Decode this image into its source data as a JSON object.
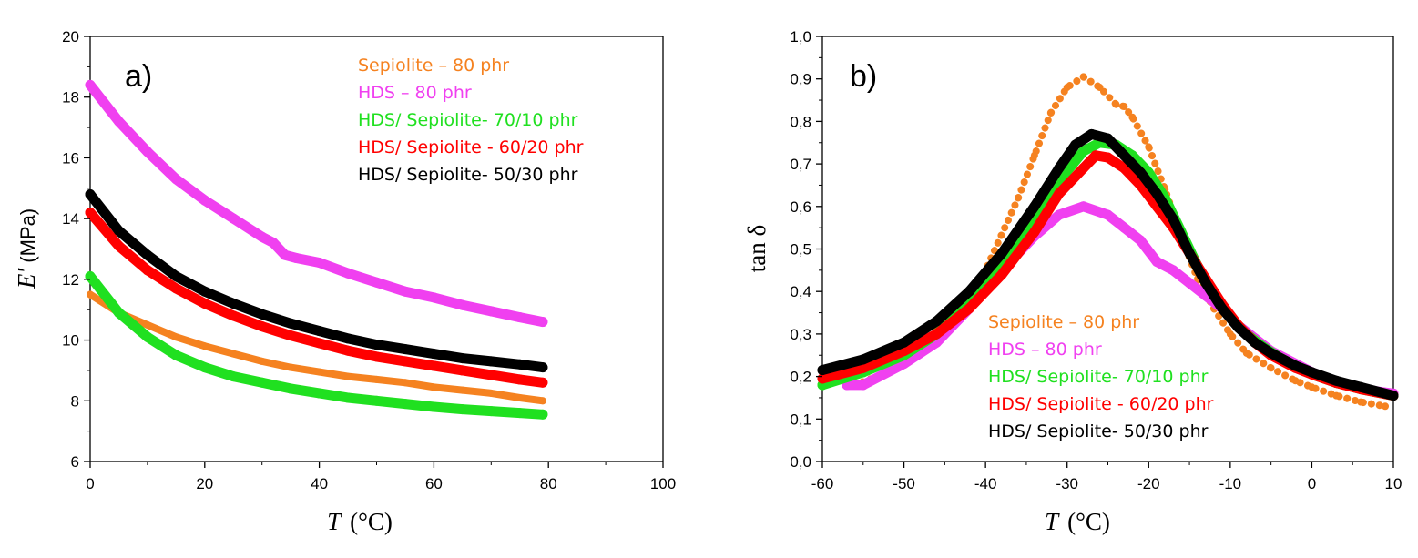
{
  "chart_data": [
    {
      "type": "scatter",
      "panel_label": "a)",
      "xlabel_italic": "T",
      "xlabel_unit": "(°C)",
      "ylabel_italic": "E′",
      "ylabel_unit": "(MPa)",
      "xlim": [
        0,
        100
      ],
      "ylim": [
        6,
        20
      ],
      "xticks": [
        0,
        20,
        40,
        60,
        80,
        100
      ],
      "xtick_labels": [
        "0",
        "20",
        "40",
        "60",
        "80",
        "100"
      ],
      "yticks": [
        6,
        8,
        10,
        12,
        14,
        16,
        18,
        20
      ],
      "ytick_labels": [
        "6",
        "8",
        "10",
        "12",
        "14",
        "16",
        "18",
        "20"
      ],
      "grid": false,
      "legend_position": "top-right",
      "series": [
        {
          "name": "Sepiolite – 80 phr",
          "color": "#F58220",
          "x": [
            0,
            5,
            10,
            15,
            20,
            25,
            30,
            35,
            40,
            45,
            50,
            55,
            60,
            65,
            70,
            75,
            79
          ],
          "y": [
            11.5,
            10.9,
            10.5,
            10.1,
            9.8,
            9.55,
            9.3,
            9.1,
            8.95,
            8.8,
            8.7,
            8.6,
            8.45,
            8.35,
            8.25,
            8.1,
            8.0
          ]
        },
        {
          "name": "HDS – 80 phr",
          "color": "#F040F0",
          "x": [
            0,
            5,
            10,
            15,
            20,
            25,
            30,
            32,
            34,
            36,
            40,
            45,
            50,
            55,
            60,
            65,
            70,
            75,
            79
          ],
          "y": [
            18.4,
            17.2,
            16.2,
            15.3,
            14.6,
            14.0,
            13.4,
            13.2,
            12.8,
            12.7,
            12.55,
            12.2,
            11.9,
            11.6,
            11.4,
            11.15,
            10.95,
            10.75,
            10.6
          ]
        },
        {
          "name": "HDS/ Sepiolite- 70/10 phr",
          "color": "#20E020",
          "x": [
            0,
            5,
            10,
            15,
            20,
            25,
            30,
            35,
            40,
            45,
            50,
            55,
            60,
            65,
            70,
            75,
            79
          ],
          "y": [
            12.1,
            10.9,
            10.1,
            9.5,
            9.1,
            8.8,
            8.6,
            8.4,
            8.25,
            8.1,
            8.0,
            7.9,
            7.8,
            7.72,
            7.66,
            7.6,
            7.55
          ]
        },
        {
          "name": "HDS/ Sepiolite - 60/20 phr",
          "color": "#FF0000",
          "x": [
            0,
            5,
            10,
            15,
            20,
            25,
            30,
            35,
            40,
            45,
            50,
            55,
            60,
            65,
            70,
            75,
            79
          ],
          "y": [
            14.2,
            13.1,
            12.3,
            11.7,
            11.2,
            10.8,
            10.45,
            10.15,
            9.9,
            9.65,
            9.45,
            9.3,
            9.15,
            9.0,
            8.85,
            8.7,
            8.6
          ]
        },
        {
          "name": "HDS/ Sepiolite- 50/30 phr",
          "color": "#000000",
          "x": [
            0,
            5,
            10,
            15,
            20,
            25,
            30,
            35,
            40,
            45,
            50,
            55,
            60,
            65,
            70,
            75,
            79
          ],
          "y": [
            14.8,
            13.6,
            12.8,
            12.1,
            11.6,
            11.2,
            10.85,
            10.55,
            10.3,
            10.05,
            9.85,
            9.7,
            9.55,
            9.4,
            9.3,
            9.2,
            9.1
          ]
        }
      ]
    },
    {
      "type": "scatter",
      "panel_label": "b)",
      "xlabel_italic": "T",
      "xlabel_unit": "(°C)",
      "ylabel": "tan δ",
      "xlim": [
        -60,
        10
      ],
      "ylim": [
        0,
        1
      ],
      "xticks": [
        -60,
        -50,
        -40,
        -30,
        -20,
        -10,
        0,
        10
      ],
      "xtick_labels": [
        "-60",
        "-50",
        "-40",
        "-30",
        "-20",
        "-10",
        "0",
        "10"
      ],
      "yticks": [
        0,
        0.1,
        0.2,
        0.3,
        0.4,
        0.5,
        0.6,
        0.7,
        0.8,
        0.9,
        1.0
      ],
      "ytick_labels": [
        "0,0",
        "0,1",
        "0,2",
        "0,3",
        "0,4",
        "0,5",
        "0,6",
        "0,7",
        "0,8",
        "0,9",
        "1,0"
      ],
      "grid": false,
      "legend_position": "bottom-center",
      "series": [
        {
          "name": "Sepiolite – 80 phr",
          "color": "#F58220",
          "x": [
            -56,
            -52,
            -48,
            -44,
            -40,
            -36,
            -34,
            -32,
            -30,
            -28,
            -26,
            -24,
            -23,
            -22,
            -20,
            -18,
            -16,
            -14,
            -12,
            -10,
            -8,
            -5,
            -2,
            0,
            3,
            6,
            9
          ],
          "y": [
            0.18,
            0.21,
            0.27,
            0.35,
            0.45,
            0.62,
            0.72,
            0.82,
            0.88,
            0.905,
            0.88,
            0.84,
            0.835,
            0.81,
            0.74,
            0.64,
            0.53,
            0.43,
            0.36,
            0.3,
            0.255,
            0.22,
            0.19,
            0.175,
            0.155,
            0.14,
            0.13
          ]
        },
        {
          "name": "HDS – 80 phr",
          "color": "#F040F0",
          "x": [
            -57,
            -55,
            -50,
            -46,
            -42,
            -38,
            -34,
            -31,
            -28,
            -25,
            -23,
            -21,
            -19,
            -17,
            -15,
            -13,
            -11,
            -9,
            -7,
            -5,
            -3,
            0,
            4,
            8,
            10
          ],
          "y": [
            0.18,
            0.18,
            0.23,
            0.28,
            0.36,
            0.45,
            0.53,
            0.58,
            0.6,
            0.58,
            0.55,
            0.52,
            0.47,
            0.45,
            0.42,
            0.39,
            0.36,
            0.32,
            0.29,
            0.26,
            0.24,
            0.21,
            0.18,
            0.165,
            0.16
          ]
        },
        {
          "name": "HDS/ Sepiolite- 70/10 phr",
          "color": "#20E020",
          "x": [
            -60,
            -55,
            -50,
            -46,
            -42,
            -38,
            -34,
            -31,
            -28,
            -26,
            -24,
            -22,
            -20,
            -18,
            -16,
            -14,
            -12,
            -10,
            -8,
            -6,
            -4,
            -2,
            0,
            3,
            6,
            10
          ],
          "y": [
            0.18,
            0.21,
            0.25,
            0.3,
            0.37,
            0.46,
            0.57,
            0.66,
            0.73,
            0.75,
            0.745,
            0.72,
            0.68,
            0.62,
            0.54,
            0.46,
            0.39,
            0.34,
            0.3,
            0.27,
            0.245,
            0.225,
            0.205,
            0.185,
            0.17,
            0.155
          ]
        },
        {
          "name": "HDS/ Sepiolite - 60/20 phr",
          "color": "#FF0000",
          "x": [
            -60,
            -55,
            -50,
            -46,
            -42,
            -38,
            -34,
            -31,
            -28,
            -26.5,
            -25,
            -23,
            -21,
            -19,
            -17,
            -15,
            -13,
            -11,
            -9,
            -7,
            -5,
            -2,
            0,
            3,
            6,
            10
          ],
          "y": [
            0.195,
            0.22,
            0.26,
            0.3,
            0.36,
            0.44,
            0.54,
            0.63,
            0.69,
            0.72,
            0.715,
            0.69,
            0.65,
            0.6,
            0.55,
            0.49,
            0.43,
            0.37,
            0.32,
            0.28,
            0.25,
            0.22,
            0.205,
            0.185,
            0.17,
            0.155
          ]
        },
        {
          "name": "HDS/ Sepiolite- 50/30 phr",
          "color": "#000000",
          "x": [
            -60,
            -55,
            -50,
            -46,
            -42,
            -38,
            -34,
            -31,
            -29,
            -27,
            -25,
            -23,
            -21,
            -19,
            -17,
            -15,
            -13,
            -11,
            -9,
            -7,
            -5,
            -2,
            0,
            3,
            6,
            10
          ],
          "y": [
            0.215,
            0.24,
            0.28,
            0.33,
            0.4,
            0.49,
            0.6,
            0.69,
            0.745,
            0.77,
            0.76,
            0.72,
            0.68,
            0.63,
            0.57,
            0.49,
            0.42,
            0.36,
            0.315,
            0.28,
            0.255,
            0.225,
            0.21,
            0.19,
            0.175,
            0.155
          ]
        }
      ]
    }
  ]
}
